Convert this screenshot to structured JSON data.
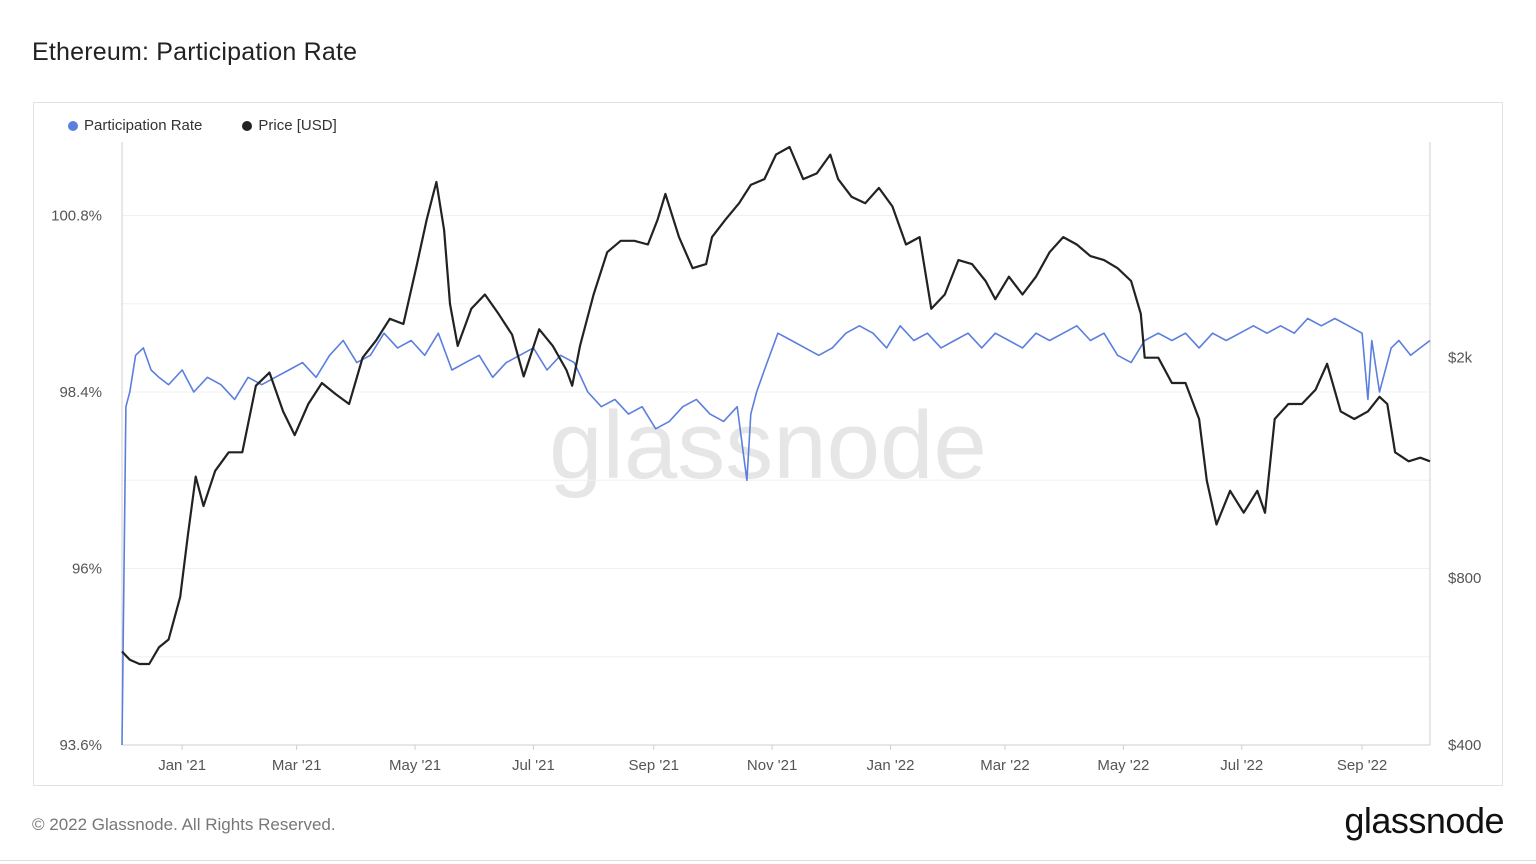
{
  "title": "Ethereum: Participation Rate",
  "footer": {
    "copyright": "© 2022 Glassnode. All Rights Reserved.",
    "brand": "glassnode"
  },
  "watermark": "glassnode",
  "chart_data": {
    "type": "line",
    "legend_placement": "top-left",
    "grid": true,
    "legend": [
      {
        "name": "Participation Rate",
        "color": "#5b7fde"
      },
      {
        "name": "Price [USD]",
        "color": "#222222"
      }
    ],
    "x_ticks": [
      "Jan '21",
      "Mar '21",
      "May '21",
      "Jul '21",
      "Sep '21",
      "Nov '21",
      "Jan '22",
      "Mar '22",
      "May '22",
      "Jul '22",
      "Sep '22"
    ],
    "x_range": [
      "2020-12-01",
      "2022-10-06"
    ],
    "y_left": {
      "ticks": [
        "93.6%",
        "96%",
        "98.4%",
        "100.8%"
      ],
      "range": [
        93.6,
        101.8
      ]
    },
    "y_right": {
      "ticks": [
        "$400",
        "$800",
        "$2k"
      ],
      "scale": "log",
      "range": [
        400,
        4900
      ]
    },
    "series": [
      {
        "name": "Participation Rate",
        "axis": "left",
        "color": "#5b7fde",
        "x": [
          "2020-12-01",
          "2020-12-03",
          "2020-12-05",
          "2020-12-08",
          "2020-12-12",
          "2020-12-16",
          "2020-12-20",
          "2020-12-25",
          "2021-01-01",
          "2021-01-07",
          "2021-01-14",
          "2021-01-21",
          "2021-01-28",
          "2021-02-04",
          "2021-02-11",
          "2021-02-18",
          "2021-02-25",
          "2021-03-04",
          "2021-03-11",
          "2021-03-18",
          "2021-03-25",
          "2021-04-01",
          "2021-04-08",
          "2021-04-15",
          "2021-04-22",
          "2021-04-29",
          "2021-05-06",
          "2021-05-13",
          "2021-05-20",
          "2021-05-27",
          "2021-06-03",
          "2021-06-10",
          "2021-06-17",
          "2021-06-24",
          "2021-07-01",
          "2021-07-08",
          "2021-07-15",
          "2021-07-22",
          "2021-07-29",
          "2021-08-05",
          "2021-08-12",
          "2021-08-19",
          "2021-08-26",
          "2021-09-02",
          "2021-09-09",
          "2021-09-16",
          "2021-09-23",
          "2021-09-30",
          "2021-10-07",
          "2021-10-14",
          "2021-10-19",
          "2021-10-21",
          "2021-10-24",
          "2021-10-28",
          "2021-11-04",
          "2021-11-11",
          "2021-11-18",
          "2021-11-25",
          "2021-12-02",
          "2021-12-09",
          "2021-12-16",
          "2021-12-23",
          "2021-12-30",
          "2022-01-06",
          "2022-01-13",
          "2022-01-20",
          "2022-01-27",
          "2022-02-03",
          "2022-02-10",
          "2022-02-17",
          "2022-02-24",
          "2022-03-03",
          "2022-03-10",
          "2022-03-17",
          "2022-03-24",
          "2022-03-31",
          "2022-04-07",
          "2022-04-14",
          "2022-04-21",
          "2022-04-28",
          "2022-05-05",
          "2022-05-12",
          "2022-05-19",
          "2022-05-26",
          "2022-06-02",
          "2022-06-09",
          "2022-06-16",
          "2022-06-23",
          "2022-06-30",
          "2022-07-07",
          "2022-07-14",
          "2022-07-21",
          "2022-07-28",
          "2022-08-04",
          "2022-08-11",
          "2022-08-18",
          "2022-08-25",
          "2022-09-01",
          "2022-09-04",
          "2022-09-06",
          "2022-09-10",
          "2022-09-16",
          "2022-09-20",
          "2022-09-26",
          "2022-10-01",
          "2022-10-06"
        ],
        "y": [
          93.6,
          98.2,
          98.4,
          98.9,
          99.0,
          98.7,
          98.6,
          98.5,
          98.7,
          98.4,
          98.6,
          98.5,
          98.3,
          98.6,
          98.5,
          98.6,
          98.7,
          98.8,
          98.6,
          98.9,
          99.1,
          98.8,
          98.9,
          99.2,
          99.0,
          99.1,
          98.9,
          99.2,
          98.7,
          98.8,
          98.9,
          98.6,
          98.8,
          98.9,
          99.0,
          98.7,
          98.9,
          98.8,
          98.4,
          98.2,
          98.3,
          98.1,
          98.2,
          97.9,
          98.0,
          98.2,
          98.3,
          98.1,
          98.0,
          98.2,
          97.2,
          98.1,
          98.4,
          98.7,
          99.2,
          99.1,
          99.0,
          98.9,
          99.0,
          99.2,
          99.3,
          99.2,
          99.0,
          99.3,
          99.1,
          99.2,
          99.0,
          99.1,
          99.2,
          99.0,
          99.2,
          99.1,
          99.0,
          99.2,
          99.1,
          99.2,
          99.3,
          99.1,
          99.2,
          98.9,
          98.8,
          99.1,
          99.2,
          99.1,
          99.2,
          99.0,
          99.2,
          99.1,
          99.2,
          99.3,
          99.2,
          99.3,
          99.2,
          99.4,
          99.3,
          99.4,
          99.3,
          99.2,
          98.3,
          99.1,
          98.4,
          99.0,
          99.1,
          98.9,
          99.0,
          99.1
        ]
      },
      {
        "name": "Price [USD]",
        "axis": "right",
        "color": "#222222",
        "x": [
          "2020-12-01",
          "2020-12-05",
          "2020-12-10",
          "2020-12-15",
          "2020-12-20",
          "2020-12-25",
          "2020-12-31",
          "2021-01-04",
          "2021-01-08",
          "2021-01-12",
          "2021-01-18",
          "2021-01-25",
          "2021-02-01",
          "2021-02-08",
          "2021-02-15",
          "2021-02-22",
          "2021-02-28",
          "2021-03-07",
          "2021-03-14",
          "2021-03-21",
          "2021-03-28",
          "2021-04-04",
          "2021-04-11",
          "2021-04-18",
          "2021-04-25",
          "2021-05-02",
          "2021-05-07",
          "2021-05-10",
          "2021-05-12",
          "2021-05-16",
          "2021-05-19",
          "2021-05-23",
          "2021-05-30",
          "2021-06-06",
          "2021-06-13",
          "2021-06-20",
          "2021-06-26",
          "2021-07-04",
          "2021-07-11",
          "2021-07-18",
          "2021-07-21",
          "2021-07-25",
          "2021-08-01",
          "2021-08-08",
          "2021-08-15",
          "2021-08-22",
          "2021-08-29",
          "2021-09-03",
          "2021-09-07",
          "2021-09-14",
          "2021-09-21",
          "2021-09-28",
          "2021-10-01",
          "2021-10-08",
          "2021-10-15",
          "2021-10-21",
          "2021-10-28",
          "2021-11-03",
          "2021-11-10",
          "2021-11-17",
          "2021-11-24",
          "2021-12-01",
          "2021-12-05",
          "2021-12-12",
          "2021-12-19",
          "2021-12-26",
          "2022-01-02",
          "2022-01-09",
          "2022-01-16",
          "2022-01-22",
          "2022-01-29",
          "2022-02-05",
          "2022-02-12",
          "2022-02-19",
          "2022-02-24",
          "2022-03-03",
          "2022-03-10",
          "2022-03-17",
          "2022-03-24",
          "2022-03-31",
          "2022-04-07",
          "2022-04-14",
          "2022-04-21",
          "2022-04-28",
          "2022-05-05",
          "2022-05-10",
          "2022-05-12",
          "2022-05-19",
          "2022-05-26",
          "2022-06-02",
          "2022-06-09",
          "2022-06-13",
          "2022-06-18",
          "2022-06-25",
          "2022-07-02",
          "2022-07-09",
          "2022-07-13",
          "2022-07-18",
          "2022-07-25",
          "2022-08-01",
          "2022-08-08",
          "2022-08-14",
          "2022-08-21",
          "2022-08-28",
          "2022-09-04",
          "2022-09-10",
          "2022-09-14",
          "2022-09-18",
          "2022-09-25",
          "2022-10-01",
          "2022-10-06"
        ],
        "y": [
          590,
          570,
          560,
          560,
          600,
          620,
          740,
          960,
          1220,
          1080,
          1250,
          1350,
          1350,
          1780,
          1880,
          1600,
          1450,
          1650,
          1800,
          1720,
          1650,
          2000,
          2150,
          2350,
          2300,
          2950,
          3550,
          3900,
          4150,
          3400,
          2500,
          2100,
          2450,
          2600,
          2400,
          2200,
          1850,
          2250,
          2100,
          1900,
          1780,
          2100,
          2600,
          3100,
          3250,
          3250,
          3200,
          3550,
          3950,
          3300,
          2900,
          2950,
          3300,
          3550,
          3800,
          4100,
          4200,
          4650,
          4800,
          4200,
          4300,
          4650,
          4200,
          3900,
          3800,
          4050,
          3750,
          3200,
          3300,
          2450,
          2600,
          3000,
          2950,
          2750,
          2550,
          2800,
          2600,
          2800,
          3100,
          3300,
          3200,
          3050,
          3000,
          2900,
          2750,
          2400,
          2000,
          2000,
          1800,
          1800,
          1550,
          1200,
          1000,
          1150,
          1050,
          1150,
          1050,
          1550,
          1650,
          1650,
          1750,
          1950,
          1600,
          1550,
          1600,
          1700,
          1650,
          1350,
          1300,
          1320,
          1300
        ]
      }
    ]
  }
}
